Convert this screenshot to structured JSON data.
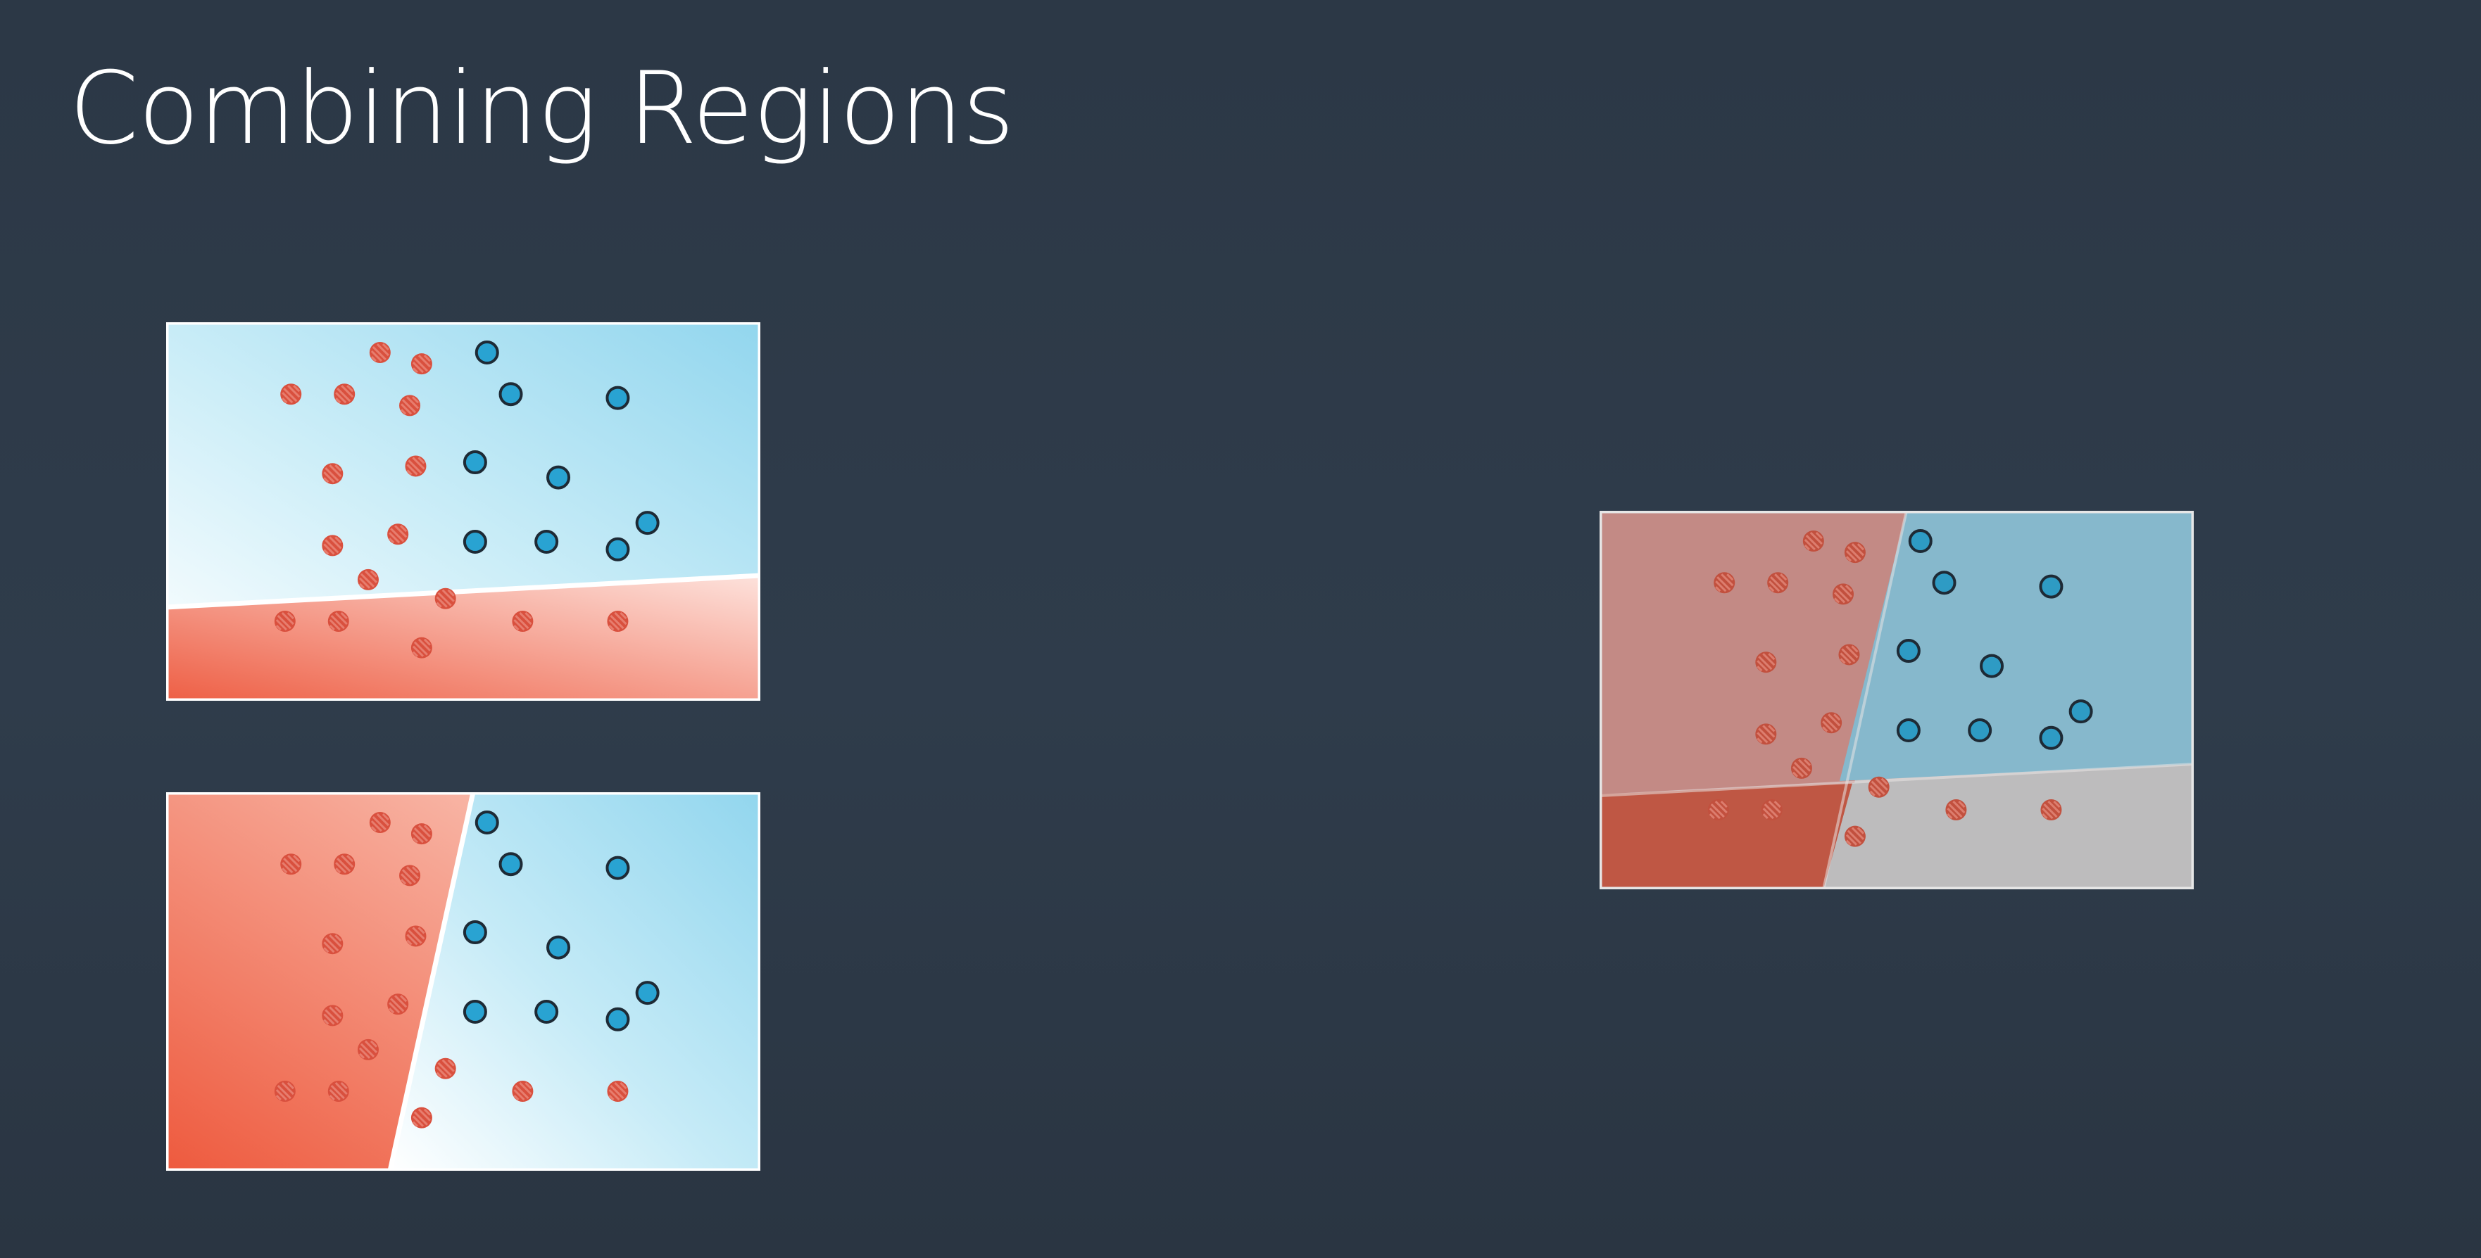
{
  "slide": {
    "title": "Combining Regions"
  },
  "colors": {
    "background": "#2f3c4b",
    "red_point": "#d9503e",
    "blue_point": "#29a3d2",
    "point_stroke": "#1e2a35",
    "region_red": "#ee5f45",
    "region_blue": "#9ad9ee",
    "boundary": "#ffffff"
  },
  "points": {
    "red": [
      [
        3.6,
        9.2
      ],
      [
        4.3,
        8.9
      ],
      [
        2.1,
        8.1
      ],
      [
        3.0,
        8.1
      ],
      [
        4.1,
        7.8
      ],
      [
        2.8,
        6.0
      ],
      [
        4.2,
        6.2
      ],
      [
        2.8,
        4.1
      ],
      [
        3.9,
        4.4
      ],
      [
        3.4,
        3.2
      ],
      [
        2.0,
        2.1
      ],
      [
        2.9,
        2.1
      ],
      [
        4.7,
        2.7
      ],
      [
        4.3,
        1.4
      ],
      [
        6.0,
        2.1
      ],
      [
        7.6,
        2.1
      ]
    ],
    "blue": [
      [
        5.4,
        9.2
      ],
      [
        5.8,
        8.1
      ],
      [
        7.6,
        8.0
      ],
      [
        5.2,
        6.3
      ],
      [
        6.6,
        5.9
      ],
      [
        8.1,
        4.7
      ],
      [
        5.2,
        4.2
      ],
      [
        6.4,
        4.2
      ],
      [
        7.6,
        4.0
      ]
    ]
  },
  "panels": [
    {
      "id": "horizontal-line-model",
      "boundary": "horizontal",
      "red_side": "below",
      "blue_side": "above"
    },
    {
      "id": "vertical-line-model",
      "boundary": "vertical",
      "red_side": "left",
      "blue_side": "right"
    },
    {
      "id": "combined-model",
      "boundary": "both",
      "note": "overlay of the two regions"
    }
  ]
}
